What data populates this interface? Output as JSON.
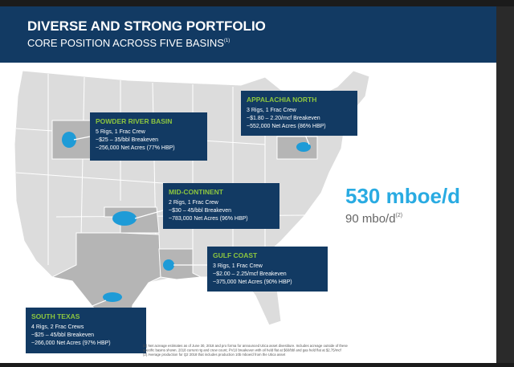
{
  "header": {
    "title": "DIVERSE AND STRONG PORTFOLIO",
    "subtitle": "CORE POSITION ACROSS FIVE BASINS",
    "subtitle_note": "(1)"
  },
  "basins": [
    {
      "name": "POWDER RIVER BASIN",
      "lines": [
        "5 Rigs, 1 Frac Crew",
        "~$25 – 35/bbl Breakeven",
        "~256,000 Net Acres (77% HBP)"
      ]
    },
    {
      "name": "APPALACHIA NORTH",
      "lines": [
        "3 Rigs, 1 Frac Crew",
        "~$1.80 – 2.20/mcf Breakeven",
        "~552,000 Net Acres (86% HBP)"
      ]
    },
    {
      "name": "MID-CONTINENT",
      "lines": [
        "2 Rigs, 1 Frac Crew",
        "~$30 – 45/bbl Breakeven",
        "~783,000 Net Acres (96% HBP)"
      ]
    },
    {
      "name": "GULF COAST",
      "lines": [
        "3 Rigs, 1 Frac Crew",
        "~$2.00 – 2.25/mcf Breakeven",
        "~375,000 Net Acres (90% HBP)"
      ]
    },
    {
      "name": "SOUTH TEXAS",
      "lines": [
        "4 Rigs, 2 Frac Crews",
        "~$25 – 45/bbl Breakeven",
        "~266,000 Net Acres (97% HBP)"
      ]
    }
  ],
  "headline": {
    "total": "530 mboe/d",
    "oil": "90 mbo/d",
    "oil_note": "(2)"
  },
  "footnotes": [
    "(1)  Net acreage estimates as of June 30, 2018 and pro forma for announced Utica asset divestiture. Includes acreage outside of these",
    "specific basins shown. 2018 current rig and crew count; PV10 breakeven with oil held flat at $60/bbl and gas held flat at $2.75/mcf",
    "(2)  Average production for Q2 2018 that includes production 10b mboe/d from the Utica asset"
  ]
}
